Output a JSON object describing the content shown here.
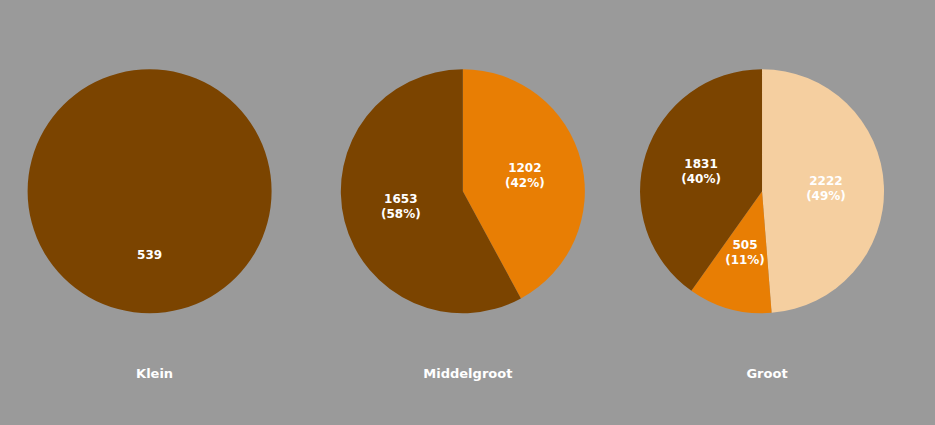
{
  "chart_data": [
    {
      "type": "pie",
      "title": "Klein",
      "values": [
        539
      ],
      "value_labels": [
        "539"
      ],
      "colors": [
        "#7B4400"
      ],
      "data_labels": true
    },
    {
      "type": "pie",
      "title": "Middelgroot",
      "values": [
        1202,
        1653
      ],
      "value_labels": [
        "1202\n(42%)",
        "1653\n(58%)"
      ],
      "colors": [
        "#E87E04",
        "#7B4400"
      ],
      "data_labels": true
    },
    {
      "type": "pie",
      "title": "Groot",
      "values": [
        2222,
        505,
        1831
      ],
      "value_labels": [
        "2222\n(49%)",
        "505\n(11%)",
        "1831\n(40%)"
      ],
      "colors": [
        "#F5CFA0",
        "#E87E04",
        "#7B4400"
      ],
      "data_labels": true
    }
  ]
}
